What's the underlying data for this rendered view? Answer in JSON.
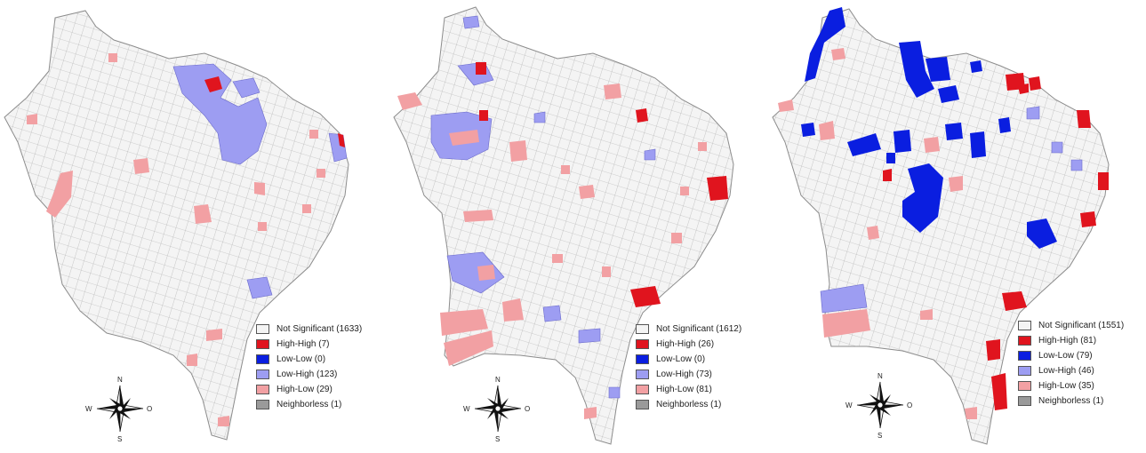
{
  "colors": {
    "not_significant": "#f4f4f4",
    "high_high": "#e0141e",
    "low_low": "#0a1ee0",
    "low_high": "#9d9df2",
    "high_low": "#f2a0a3",
    "neighborless": "#9a9a9a",
    "border": "#9a9a9a"
  },
  "compass": {
    "north": "N",
    "south": "S",
    "west": "W",
    "east": "O"
  },
  "maps": [
    {
      "legend": [
        {
          "key": "not_significant",
          "label": "Not Significant (1633)"
        },
        {
          "key": "high_high",
          "label": "High-High (7)"
        },
        {
          "key": "low_low",
          "label": "Low-Low (0)"
        },
        {
          "key": "low_high",
          "label": "Low-High (123)"
        },
        {
          "key": "high_low",
          "label": "High-Low (29)"
        },
        {
          "key": "neighborless",
          "label": "Neighborless (1)"
        }
      ]
    },
    {
      "legend": [
        {
          "key": "not_significant",
          "label": "Not Significant (1612)"
        },
        {
          "key": "high_high",
          "label": "High-High (26)"
        },
        {
          "key": "low_low",
          "label": "Low-Low (0)"
        },
        {
          "key": "low_high",
          "label": "Low-High (73)"
        },
        {
          "key": "high_low",
          "label": "High-Low (81)"
        },
        {
          "key": "neighborless",
          "label": "Neighborless (1)"
        }
      ]
    },
    {
      "legend": [
        {
          "key": "not_significant",
          "label": "Not Significant (1551)"
        },
        {
          "key": "high_high",
          "label": "High-High (81)"
        },
        {
          "key": "low_low",
          "label": "Low-Low (79)"
        },
        {
          "key": "low_high",
          "label": "Low-High (46)"
        },
        {
          "key": "high_low",
          "label": "High-Low (35)"
        },
        {
          "key": "neighborless",
          "label": "Neighborless (1)"
        }
      ]
    }
  ]
}
